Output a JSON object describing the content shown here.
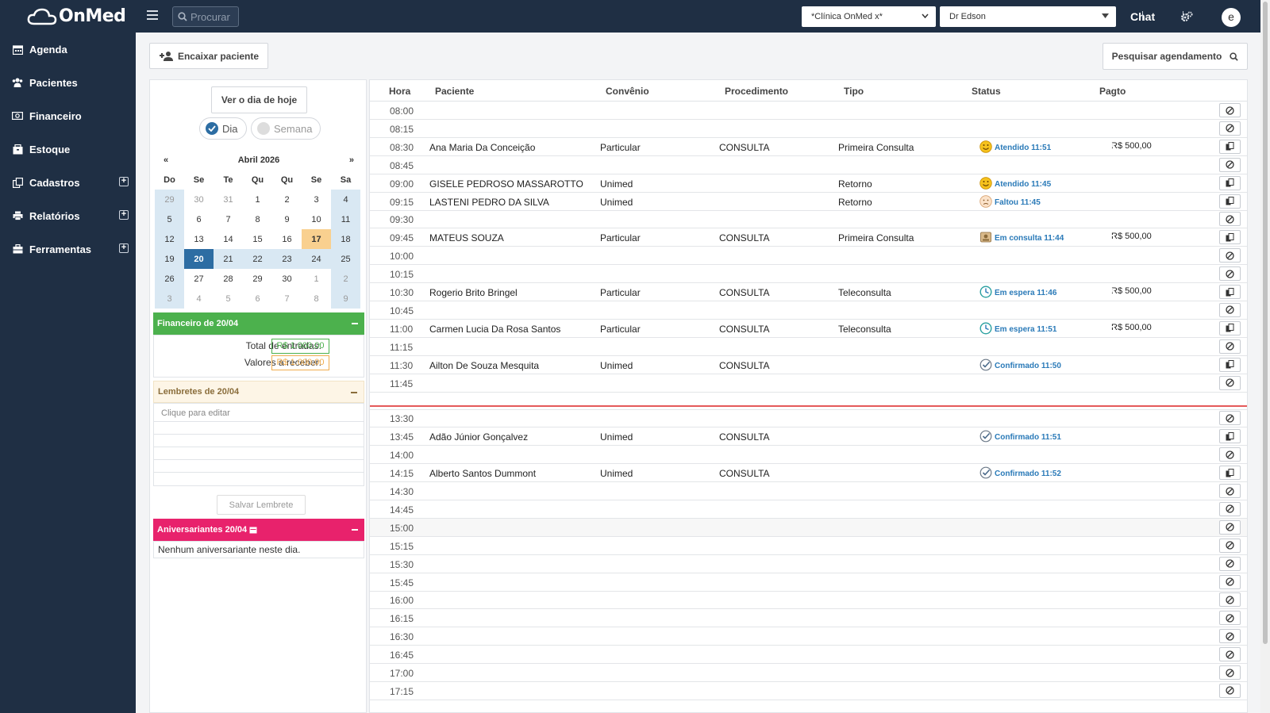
{
  "app": {
    "logo_text": "OnMed"
  },
  "sidebar": {
    "items": [
      {
        "label": "Agenda",
        "icon": "calendar-icon"
      },
      {
        "label": "Pacientes",
        "icon": "users-icon"
      },
      {
        "label": "Financeiro",
        "icon": "money-icon"
      },
      {
        "label": "Estoque",
        "icon": "box-icon"
      },
      {
        "label": "Cadastros",
        "icon": "copy-icon",
        "expandable": true
      },
      {
        "label": "Relatórios",
        "icon": "printer-icon",
        "expandable": true
      },
      {
        "label": "Ferramentas",
        "icon": "toolbox-icon",
        "expandable": true
      }
    ]
  },
  "topbar": {
    "search_placeholder": "Procurar",
    "clinic": "*Clínica OnMed x*",
    "doctor": "Dr Edson",
    "chat": "Chat",
    "avatar_initial": "e"
  },
  "actions": {
    "encaixar": "Encaixar paciente",
    "pesquisar": "Pesquisar agendamento",
    "today": "Ver o dia de hoje",
    "view_day": "Dia",
    "view_week": "Semana"
  },
  "calendar": {
    "prev": "«",
    "next": "»",
    "month": "Abril 2026",
    "dow": [
      "Do",
      "Se",
      "Te",
      "Qu",
      "Qu",
      "Se",
      "Sa"
    ],
    "weeks": [
      [
        "29",
        "30",
        "31",
        "1",
        "2",
        "3",
        "4"
      ],
      [
        "5",
        "6",
        "7",
        "8",
        "9",
        "10",
        "11"
      ],
      [
        "12",
        "13",
        "14",
        "15",
        "16",
        "17",
        "18"
      ],
      [
        "19",
        "20",
        "21",
        "22",
        "23",
        "24",
        "25"
      ],
      [
        "26",
        "27",
        "28",
        "29",
        "30",
        "1",
        "2"
      ],
      [
        "3",
        "4",
        "5",
        "6",
        "7",
        "8",
        "9"
      ]
    ],
    "selected": "20",
    "today": "17"
  },
  "financeiro": {
    "title": "Financeiro de 20/04",
    "entradas_label": "Total de entradas:",
    "entradas_value": "R$ 1.000,00",
    "receber_label": "Valores a receber:",
    "receber_value": "R$ 1.000,00",
    "colors": {
      "entradas": "#4cb14d",
      "receber": "#f0ad4e"
    }
  },
  "lembretes": {
    "title": "Lembretes de 20/04",
    "placeholder": "Clique para editar",
    "save": "Salvar Lembrete"
  },
  "aniversariantes": {
    "title": "Aniversariantes 20/04",
    "empty": "Nenhum aniversariante neste dia."
  },
  "schedule": {
    "headers": [
      "Hora",
      "Paciente",
      "Convênio",
      "Procedimento",
      "Tipo",
      "Status",
      "Pagto"
    ],
    "rows": [
      {
        "hora": "08:00"
      },
      {
        "hora": "08:15"
      },
      {
        "hora": "08:30",
        "paciente": "Ana Maria Da Conceição",
        "convenio": "Particular",
        "procedimento": "CONSULTA",
        "tipo": "Primeira Consulta",
        "status": "Atendido 11:51",
        "status_icon": "smiley-icon",
        "pagto": "R$ 500,00",
        "pagto_status": "paid"
      },
      {
        "hora": "08:45"
      },
      {
        "hora": "09:00",
        "paciente": "GISELE PEDROSO MASSAROTTO",
        "convenio": "Unimed",
        "tipo": "Retorno",
        "status": "Atendido 11:45",
        "status_icon": "smiley-icon"
      },
      {
        "hora": "09:15",
        "paciente": "LASTENI PEDRO DA SILVA",
        "convenio": "Unimed",
        "tipo": "Retorno",
        "status": "Faltou 11:45",
        "status_icon": "sad-face-icon"
      },
      {
        "hora": "09:30"
      },
      {
        "hora": "09:45",
        "paciente": "MATEUS SOUZA",
        "convenio": "Particular",
        "procedimento": "CONSULTA",
        "tipo": "Primeira Consulta",
        "status": "Em consulta 11:44",
        "status_icon": "consultation-icon",
        "pagto": "R$ 500,00",
        "pagto_status": "unpaid"
      },
      {
        "hora": "10:00"
      },
      {
        "hora": "10:15"
      },
      {
        "hora": "10:30",
        "paciente": "Rogerio Brito Bringel",
        "convenio": "Particular",
        "procedimento": "CONSULTA",
        "tipo": "Teleconsulta",
        "status": "Em espera 11:46",
        "status_icon": "clock-icon",
        "pagto": "R$ 500,00",
        "pagto_status": "paid"
      },
      {
        "hora": "10:45"
      },
      {
        "hora": "11:00",
        "paciente": "Carmen Lucia Da Rosa Santos",
        "convenio": "Particular",
        "procedimento": "CONSULTA",
        "tipo": "Teleconsulta",
        "status": "Em espera 11:51",
        "status_icon": "clock-icon",
        "pagto": "R$ 500,00",
        "pagto_status": "unpaid"
      },
      {
        "hora": "11:15"
      },
      {
        "hora": "11:30",
        "paciente": "Ailton De Souza Mesquita",
        "convenio": "Unimed",
        "procedimento": "CONSULTA",
        "status": "Confirmado 11:50",
        "status_icon": "check-circle-icon"
      },
      {
        "hora": "11:45"
      },
      {
        "hora": "",
        "gap": true
      },
      {
        "hora": "13:30"
      },
      {
        "hora": "13:45",
        "paciente": "Adão Júnior Gonçalvez",
        "convenio": "Unimed",
        "procedimento": "CONSULTA",
        "status": "Confirmado 11:51",
        "status_icon": "check-circle-icon"
      },
      {
        "hora": "14:00"
      },
      {
        "hora": "14:15",
        "paciente": "Alberto Santos Dummont",
        "convenio": "Unimed",
        "procedimento": "CONSULTA",
        "status": "Confirmado 11:52",
        "status_icon": "check-circle-icon"
      },
      {
        "hora": "14:30"
      },
      {
        "hora": "14:45"
      },
      {
        "hora": "15:00",
        "shade": true
      },
      {
        "hora": "15:15"
      },
      {
        "hora": "15:30"
      },
      {
        "hora": "15:45"
      },
      {
        "hora": "16:00"
      },
      {
        "hora": "16:15"
      },
      {
        "hora": "16:30"
      },
      {
        "hora": "16:45"
      },
      {
        "hora": "17:00"
      },
      {
        "hora": "17:15"
      }
    ]
  }
}
